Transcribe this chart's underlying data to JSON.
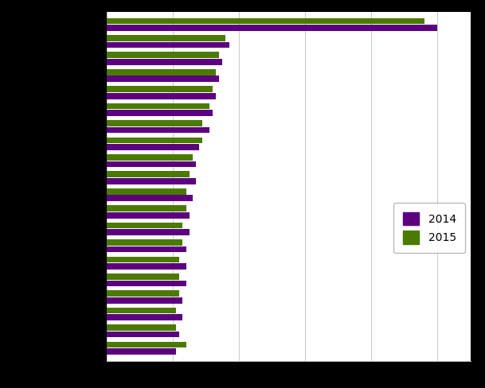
{
  "values_2014": [
    100,
    37,
    35,
    34,
    33,
    32,
    31,
    28,
    27,
    27,
    26,
    25,
    25,
    24,
    24,
    24,
    23,
    23,
    22,
    21
  ],
  "values_2015": [
    96,
    36,
    34,
    33,
    32,
    31,
    29,
    29,
    26,
    25,
    24,
    24,
    23,
    23,
    22,
    22,
    22,
    21,
    21,
    24
  ],
  "color_2014": "#5c0080",
  "color_2015": "#4a7a00",
  "legend_2014": "2014",
  "legend_2015": "2015",
  "xlim_max": 110,
  "n_categories": 20,
  "bg_color": "#ffffff",
  "outer_bg": "#000000",
  "grid_color": "#cccccc"
}
